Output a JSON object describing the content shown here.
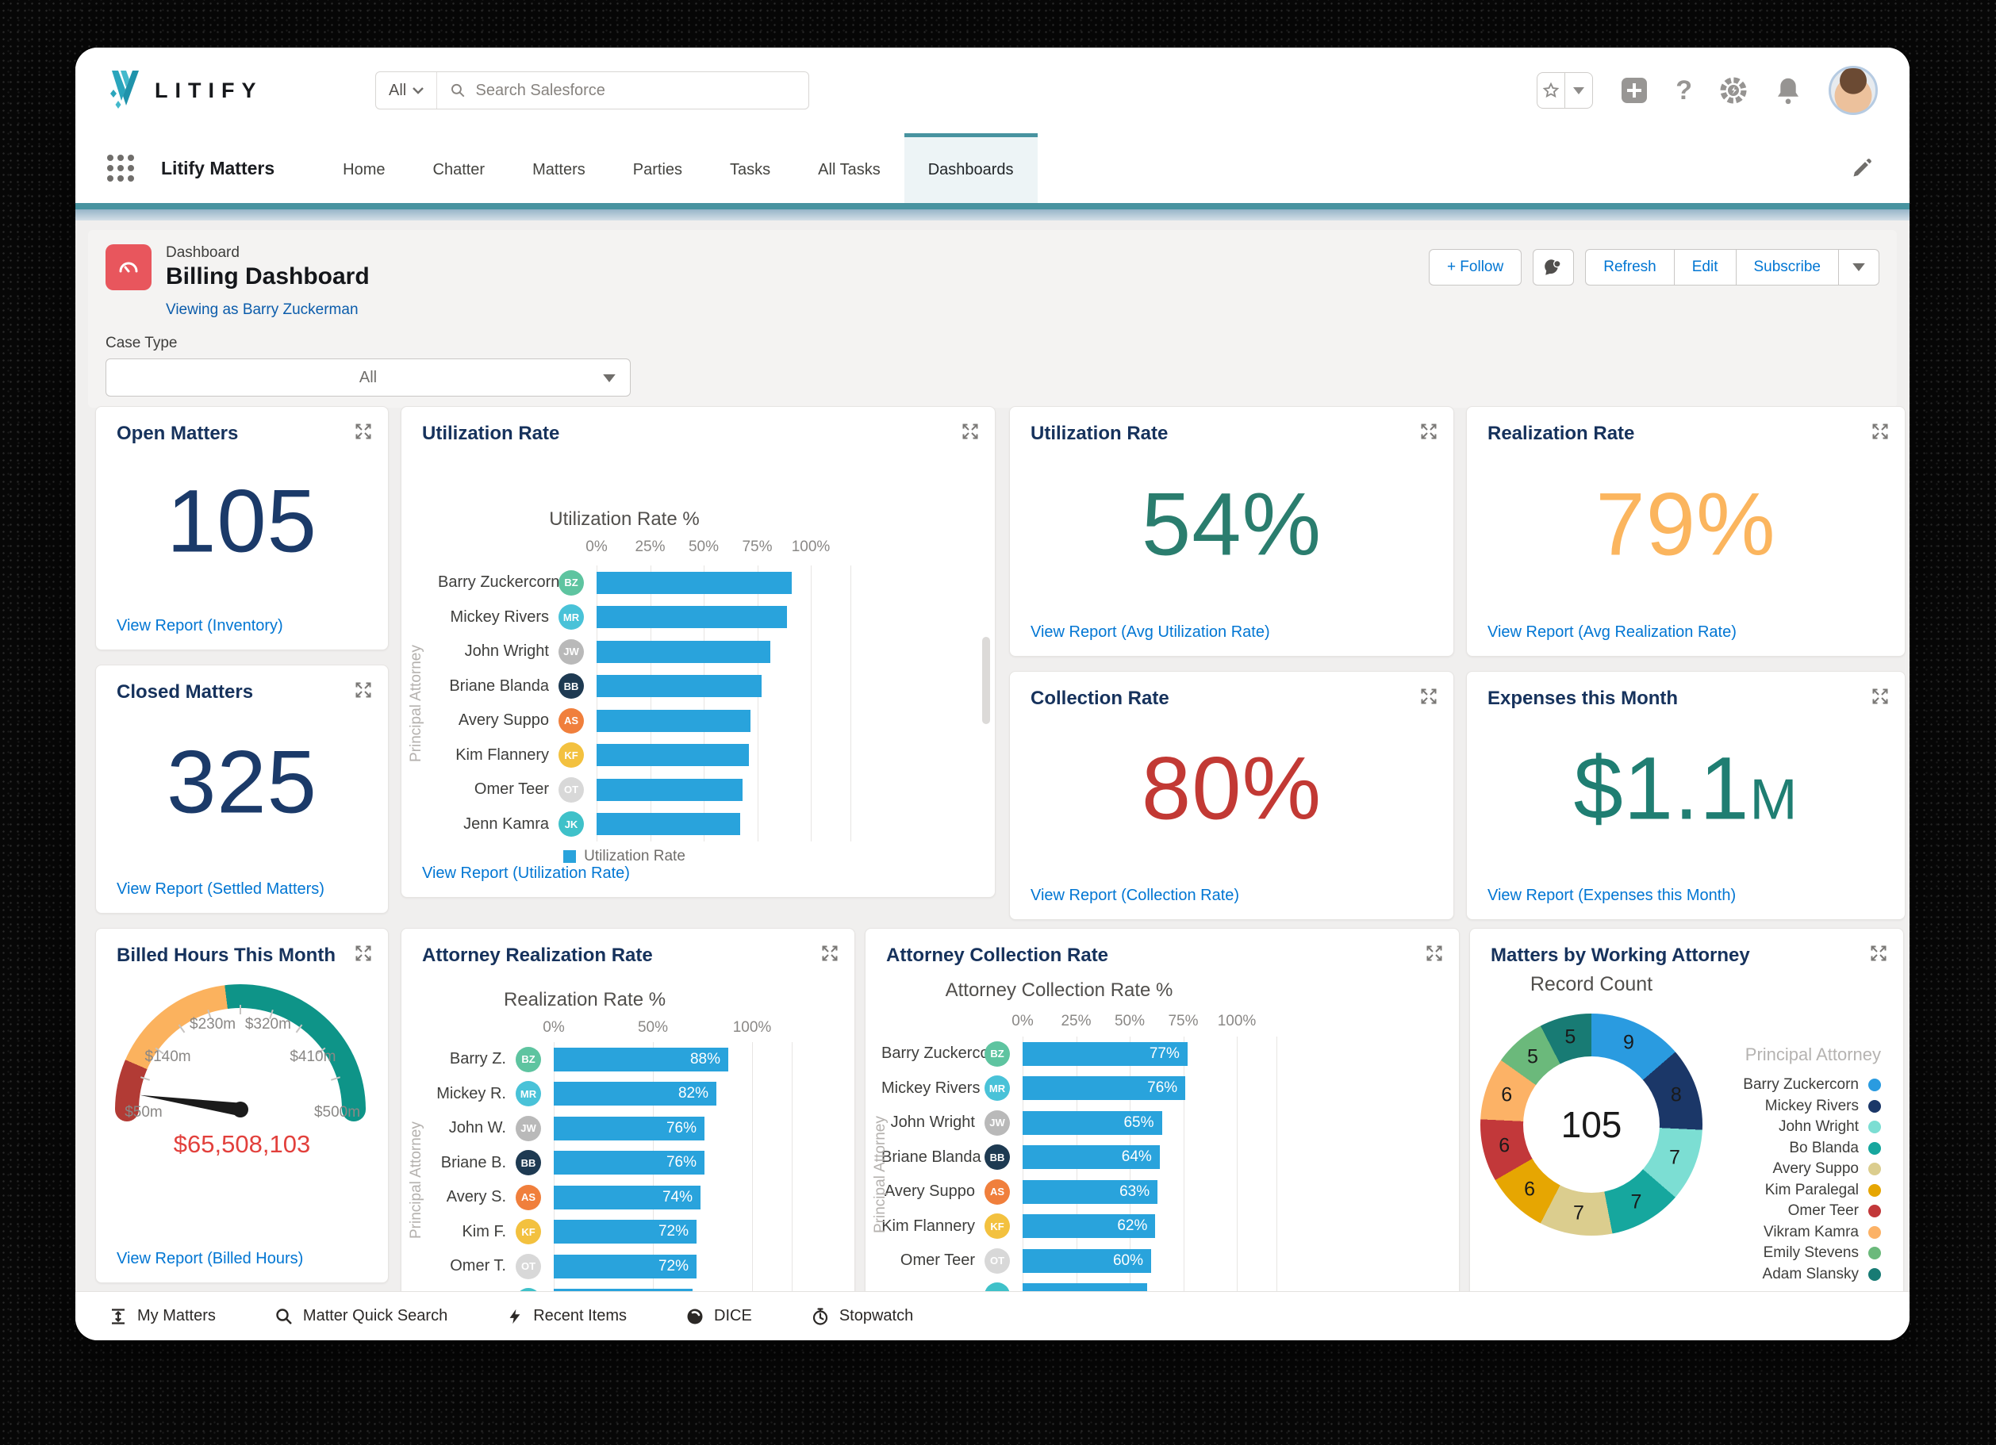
{
  "topbar": {
    "search_scope": "All",
    "search_placeholder": "Search Salesforce"
  },
  "nav": {
    "app_name": "Litify Matters",
    "tabs": [
      "Home",
      "Chatter",
      "Matters",
      "Parties",
      "Tasks",
      "All Tasks",
      "Dashboards"
    ],
    "active_tab": "Dashboards"
  },
  "header": {
    "entity_label": "Dashboard",
    "title": "Billing Dashboard",
    "viewing_as": "Viewing as Barry Zuckerman",
    "actions": {
      "follow": "+ Follow",
      "refresh": "Refresh",
      "edit": "Edit",
      "subscribe": "Subscribe"
    },
    "filter": {
      "label": "Case Type",
      "value": "All"
    }
  },
  "metrics": [
    {
      "title": "Open Matters",
      "value": "105",
      "link": "View Report (Inventory)",
      "color": "#1b3a69"
    },
    {
      "title": "Utilization Rate",
      "value": "54%",
      "link": "View Report (Avg Utilization Rate)",
      "color": "#2a7d6e"
    },
    {
      "title": "Realization Rate",
      "value": "79%",
      "link": "View Report (Avg Realization Rate)",
      "color": "#fbb55e"
    },
    {
      "title": "Closed Matters",
      "value": "325",
      "link": "View Report (Settled Matters)",
      "color": "#1b3a69"
    },
    {
      "title": "Collection Rate",
      "value": "80%",
      "link": "View Report (Collection Rate)",
      "color": "#c23934"
    },
    {
      "title": "Expenses this Month",
      "value": "$1.1",
      "value_suffix": "M",
      "link": "View Report (Expenses this Month)",
      "color": "#1f7e72"
    }
  ],
  "chart_data": [
    {
      "id": "utilization_chart",
      "type": "bar",
      "orientation": "horizontal",
      "card_title": "Utilization Rate",
      "title": "Utilization Rate %",
      "ylabel": "Principal Attorney",
      "xticks": [
        "0%",
        "25%",
        "50%",
        "75%",
        "100%"
      ],
      "xlim": [
        0,
        100
      ],
      "categories": [
        "Barry Zuckercorn",
        "Mickey Rivers",
        "John Wright",
        "Briane Blanda",
        "Avery Suppo",
        "Kim Flannery",
        "Omer Teer",
        "Jenn Kamra"
      ],
      "values": [
        91,
        89,
        81,
        77,
        72,
        71,
        68,
        67
      ],
      "avatar_colors": [
        "#5ec4a0",
        "#49c2d8",
        "#b9b9b9",
        "#1e3a52",
        "#f07f3c",
        "#f3c13f",
        "#d8d8d8",
        "#3fc1c9"
      ],
      "bar_color": "#29a3dc",
      "legend": [
        "Utilization Rate"
      ],
      "link": "View Report (Utilization Rate)"
    },
    {
      "id": "attorney_realization",
      "type": "bar",
      "orientation": "horizontal",
      "card_title": "Attorney Realization Rate",
      "title": "Realization Rate %",
      "ylabel": "Principal Attorney",
      "xticks": [
        "0%",
        "50%",
        "100%"
      ],
      "xlim": [
        0,
        100
      ],
      "categories": [
        "Barry Z.",
        "Mickey R.",
        "John W.",
        "Briane B.",
        "Avery S.",
        "Kim F.",
        "Omer T."
      ],
      "values": [
        88,
        82,
        76,
        76,
        74,
        72,
        72
      ],
      "value_labels": [
        "88%",
        "82%",
        "76%",
        "76%",
        "74%",
        "72%",
        "72%"
      ],
      "avatar_colors": [
        "#5ec4a0",
        "#49c2d8",
        "#b9b9b9",
        "#1e3a52",
        "#f07f3c",
        "#f3c13f",
        "#d8d8d8"
      ],
      "bar_color": "#29a3dc",
      "clipped_row": {
        "value": 70,
        "avatar_color": "#3fc1c9"
      }
    },
    {
      "id": "attorney_collection",
      "type": "bar",
      "orientation": "horizontal",
      "card_title": "Attorney Collection Rate",
      "title": "Attorney Collection Rate %",
      "ylabel": "Principal Attorney",
      "xticks": [
        "0%",
        "25%",
        "50%",
        "75%",
        "100%"
      ],
      "xlim": [
        0,
        100
      ],
      "categories": [
        "Barry Zuckercorn",
        "Mickey Rivers",
        "John Wright",
        "Briane Blanda",
        "Avery Suppo",
        "Kim Flannery",
        "Omer Teer"
      ],
      "values": [
        77,
        76,
        65,
        64,
        63,
        62,
        60
      ],
      "value_labels": [
        "77%",
        "76%",
        "65%",
        "64%",
        "63%",
        "62%",
        "60%"
      ],
      "avatar_colors": [
        "#5ec4a0",
        "#49c2d8",
        "#b9b9b9",
        "#1e3a52",
        "#f07f3c",
        "#f3c13f",
        "#d8d8d8"
      ],
      "bar_color": "#29a3dc",
      "clipped_row": {
        "value": 58,
        "avatar_color": "#3fc1c9"
      }
    },
    {
      "id": "matters_by_attorney",
      "type": "pie",
      "card_title": "Matters by Working Attorney",
      "title": "Record Count",
      "center_label": "105",
      "legend_title": "Principal Attorney",
      "segments": [
        {
          "label": "Barry Zuckercorn",
          "value": 9,
          "color": "#2a9be0"
        },
        {
          "label": "Mickey Rivers",
          "value": 8,
          "color": "#1b3768"
        },
        {
          "label": "John Wright",
          "value": 7,
          "color": "#7cded3"
        },
        {
          "label": "Bo Blanda",
          "value": 7,
          "color": "#16a79e"
        },
        {
          "label": "Avery Suppo",
          "value": 7,
          "color": "#dbcd8e"
        },
        {
          "label": "Kim Paralegal",
          "value": 6,
          "color": "#e6a602"
        },
        {
          "label": "Omer Teer",
          "value": 6,
          "color": "#c2383a"
        },
        {
          "label": "Vikram Kamra",
          "value": 6,
          "color": "#fcb266"
        },
        {
          "label": "Emily Stevens",
          "value": 5,
          "color": "#6bb97b"
        },
        {
          "label": "Adam Slansky",
          "value": 5,
          "color": "#187b74"
        }
      ]
    },
    {
      "id": "billed_hours",
      "type": "gauge",
      "card_title": "Billed Hours This Month",
      "value": 65508103,
      "value_label": "$65,508,103",
      "value_color": "#e2403c",
      "min": 50000000,
      "max": 500000000,
      "ticks": [
        "$50m",
        "$140m",
        "$230m",
        "$320m",
        "$410m",
        "$500m"
      ],
      "bands": [
        {
          "to": 0.13,
          "color": "#b23b35"
        },
        {
          "to": 0.46,
          "color": "#fbb25e"
        },
        {
          "to": 1.0,
          "color": "#0e9488"
        }
      ],
      "link": "View Report (Billed Hours)"
    }
  ],
  "footer": {
    "items": [
      {
        "icon": "list-arrows",
        "label": "My Matters"
      },
      {
        "icon": "search",
        "label": "Matter Quick Search"
      },
      {
        "icon": "bolt",
        "label": "Recent Items"
      },
      {
        "icon": "dice",
        "label": "DICE"
      },
      {
        "icon": "stopwatch",
        "label": "Stopwatch"
      }
    ]
  }
}
